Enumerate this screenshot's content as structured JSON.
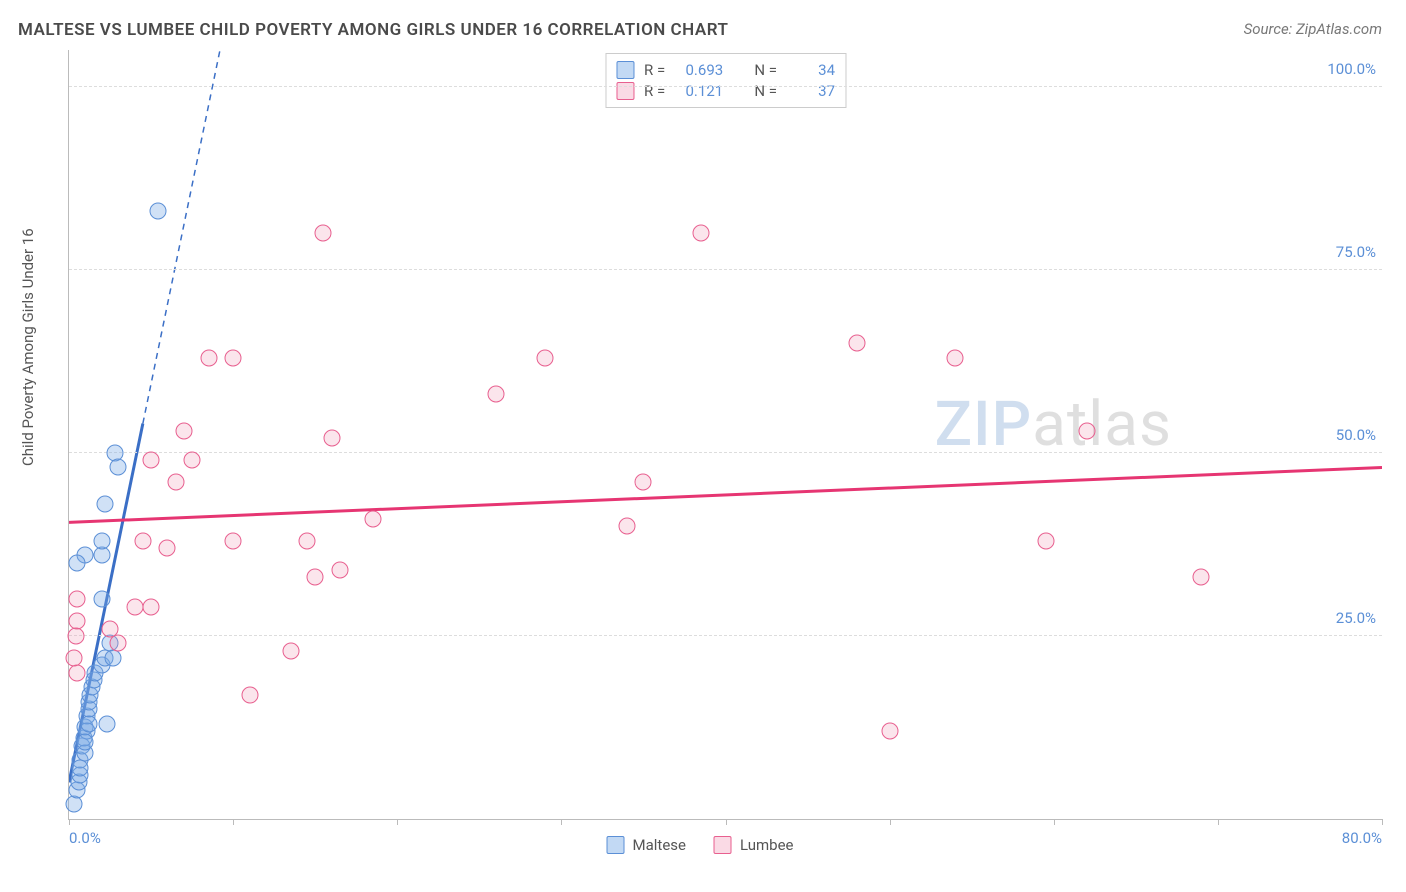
{
  "header": {
    "title": "MALTESE VS LUMBEE CHILD POVERTY AMONG GIRLS UNDER 16 CORRELATION CHART",
    "source": "Source: ZipAtlas.com"
  },
  "chart": {
    "type": "scatter",
    "ylabel": "Child Poverty Among Girls Under 16",
    "xlim": [
      0,
      80
    ],
    "ylim": [
      0,
      105
    ],
    "xticks": [
      0,
      10,
      20,
      30,
      40,
      50,
      60,
      70,
      80
    ],
    "xtick_labels_shown": {
      "0": "0.0%",
      "80": "80.0%"
    },
    "yticks": [
      25,
      50,
      75,
      100
    ],
    "ytick_labels": [
      "25.0%",
      "50.0%",
      "75.0%",
      "100.0%"
    ],
    "grid_color": "#dddddd",
    "axis_color": "#bbbbbb",
    "background_color": "#ffffff",
    "series": [
      {
        "name": "Maltese",
        "marker_fill": "rgba(120,170,230,0.35)",
        "marker_stroke": "#5b8fd6",
        "trend_color": "#3b6fc6",
        "trend_solid": {
          "x1": 0,
          "y1": 5,
          "x2": 4.5,
          "y2": 54
        },
        "trend_dash": {
          "x1": 4.5,
          "y1": 54,
          "x2": 9.2,
          "y2": 105
        },
        "R": "0.693",
        "N": "34",
        "points": [
          [
            0.3,
            2.0
          ],
          [
            0.5,
            4.0
          ],
          [
            0.6,
            5.0
          ],
          [
            0.7,
            6.0
          ],
          [
            0.7,
            8.0
          ],
          [
            0.7,
            7.0
          ],
          [
            0.8,
            10.0
          ],
          [
            0.9,
            11.0
          ],
          [
            1.0,
            12.5
          ],
          [
            1.1,
            14.0
          ],
          [
            1.1,
            12.0
          ],
          [
            1.2,
            15.0
          ],
          [
            1.2,
            16.0
          ],
          [
            1.3,
            17.0
          ],
          [
            1.4,
            18.0
          ],
          [
            1.5,
            19.0
          ],
          [
            1.6,
            20.0
          ],
          [
            1.0,
            9.0
          ],
          [
            1.0,
            10.5
          ],
          [
            1.2,
            13.0
          ],
          [
            2.0,
            21.0
          ],
          [
            2.2,
            22.0
          ],
          [
            2.3,
            13.0
          ],
          [
            2.5,
            24.0
          ],
          [
            2.7,
            22.0
          ],
          [
            2.0,
            30.0
          ],
          [
            1.0,
            36.0
          ],
          [
            2.0,
            36.0
          ],
          [
            2.0,
            38.0
          ],
          [
            2.2,
            43.0
          ],
          [
            2.8,
            50.0
          ],
          [
            3.0,
            48.0
          ],
          [
            0.5,
            35.0
          ],
          [
            5.4,
            83.0
          ]
        ]
      },
      {
        "name": "Lumbee",
        "marker_fill": "rgba(240,150,180,0.25)",
        "marker_stroke": "#e85f8f",
        "trend_color": "#e63572",
        "trend_solid": {
          "x1": 0,
          "y1": 40.5,
          "x2": 80,
          "y2": 48
        },
        "trend_dash": null,
        "R": "0.121",
        "N": "37",
        "points": [
          [
            0.5,
            20.0
          ],
          [
            0.3,
            22.0
          ],
          [
            0.5,
            27.0
          ],
          [
            0.4,
            25.0
          ],
          [
            0.5,
            30.0
          ],
          [
            2.5,
            26.0
          ],
          [
            3.0,
            24.0
          ],
          [
            4.0,
            29.0
          ],
          [
            4.5,
            38.0
          ],
          [
            5.0,
            29.0
          ],
          [
            5.0,
            49.0
          ],
          [
            6.0,
            37.0
          ],
          [
            6.5,
            46.0
          ],
          [
            7.0,
            53.0
          ],
          [
            7.5,
            49.0
          ],
          [
            8.5,
            63.0
          ],
          [
            10.0,
            38.0
          ],
          [
            10.0,
            63.0
          ],
          [
            11.0,
            17.0
          ],
          [
            13.5,
            23.0
          ],
          [
            14.5,
            38.0
          ],
          [
            15.0,
            33.0
          ],
          [
            15.5,
            80.0
          ],
          [
            16.0,
            52.0
          ],
          [
            16.5,
            34.0
          ],
          [
            18.5,
            41.0
          ],
          [
            26.0,
            58.0
          ],
          [
            29.0,
            63.0
          ],
          [
            34.0,
            40.0
          ],
          [
            35.0,
            46.0
          ],
          [
            38.5,
            80.0
          ],
          [
            48.0,
            65.0
          ],
          [
            50.0,
            12.0
          ],
          [
            54.0,
            63.0
          ],
          [
            59.5,
            38.0
          ],
          [
            62.0,
            53.0
          ],
          [
            69.0,
            33.0
          ]
        ]
      }
    ],
    "legend_top": [
      {
        "series": 0,
        "R_label": "R =",
        "N_label": "N ="
      },
      {
        "series": 1,
        "R_label": "R =",
        "N_label": "N ="
      }
    ],
    "legend_bottom": [
      {
        "series": 0
      },
      {
        "series": 1
      }
    ],
    "watermark": {
      "z": "ZIP",
      "rest": "atlas"
    }
  }
}
